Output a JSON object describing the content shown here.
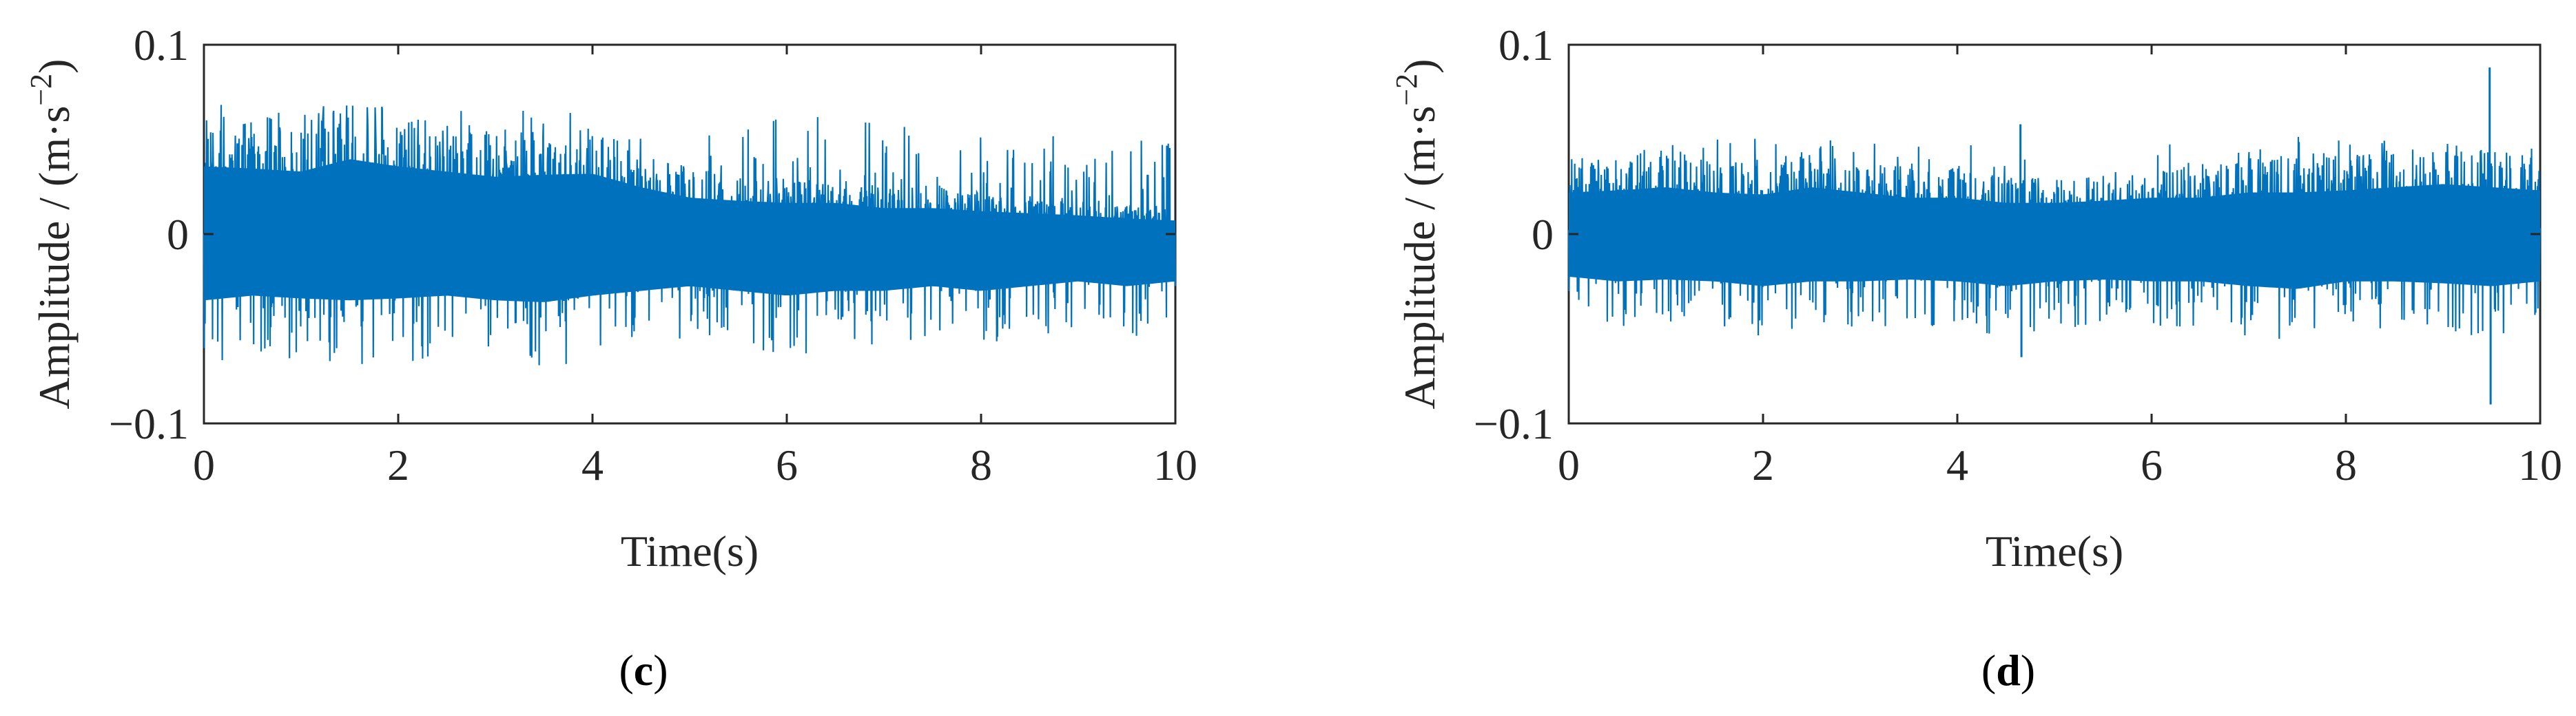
{
  "chart_data": [
    {
      "type": "line",
      "panel_label": "c",
      "xlabel": "Time(s)",
      "ylabel": "Amplitude / (m·s",
      "ylabel_exponent": "−2",
      "ylabel_close": ")",
      "xlim": [
        0,
        10
      ],
      "ylim": [
        -0.1,
        0.1
      ],
      "xticks": [
        "0",
        "2",
        "4",
        "6",
        "8",
        "10"
      ],
      "yticks": [
        "−0.1",
        "0",
        "0.1"
      ],
      "grid": false,
      "color": "#0072BD",
      "envelope": {
        "t": [
          0,
          0.5,
          1,
          1.5,
          2,
          2.5,
          3,
          3.5,
          4,
          4.5,
          5,
          5.5,
          6,
          6.5,
          7,
          7.5,
          8,
          8.5,
          9,
          9.5,
          10
        ],
        "upper": [
          0.065,
          0.063,
          0.06,
          0.072,
          0.065,
          0.06,
          0.055,
          0.057,
          0.058,
          0.045,
          0.035,
          0.032,
          0.03,
          0.03,
          0.025,
          0.025,
          0.022,
          0.02,
          0.018,
          0.015,
          0.013
        ],
        "lower": [
          -0.07,
          -0.065,
          -0.068,
          -0.07,
          -0.068,
          -0.065,
          -0.07,
          -0.072,
          -0.065,
          -0.06,
          -0.055,
          -0.06,
          -0.065,
          -0.06,
          -0.06,
          -0.055,
          -0.06,
          -0.055,
          -0.05,
          -0.055,
          -0.05
        ]
      }
    },
    {
      "type": "line",
      "panel_label": "d",
      "xlabel": "Time(s)",
      "ylabel": "Amplitude / (m·s",
      "ylabel_exponent": "−2",
      "ylabel_close": ")",
      "xlim": [
        0,
        10
      ],
      "ylim": [
        -0.1,
        0.1
      ],
      "xticks": [
        "0",
        "2",
        "4",
        "6",
        "8",
        "10"
      ],
      "yticks": [
        "−0.1",
        "0",
        "0.1"
      ],
      "grid": false,
      "color": "#0072BD",
      "envelope": {
        "t": [
          0,
          0.5,
          1,
          1.5,
          2,
          2.5,
          3,
          3.5,
          4,
          4.5,
          5,
          5.5,
          6,
          6.5,
          7,
          7.5,
          8,
          8.5,
          9,
          9.5,
          10
        ],
        "upper": [
          0.04,
          0.042,
          0.045,
          0.04,
          0.038,
          0.045,
          0.04,
          0.035,
          0.035,
          0.03,
          0.03,
          0.032,
          0.035,
          0.035,
          0.04,
          0.04,
          0.042,
          0.045,
          0.048,
          0.045,
          0.042
        ],
        "lower": [
          -0.045,
          -0.05,
          -0.048,
          -0.05,
          -0.055,
          -0.05,
          -0.05,
          -0.048,
          -0.05,
          -0.055,
          -0.05,
          -0.048,
          -0.05,
          -0.05,
          -0.055,
          -0.058,
          -0.05,
          -0.05,
          -0.052,
          -0.055,
          -0.05
        ]
      },
      "spikes": [
        {
          "t": 4.65,
          "value": 0.058
        },
        {
          "t": 4.66,
          "value": -0.065
        },
        {
          "t": 9.48,
          "value": 0.088
        },
        {
          "t": 9.49,
          "value": -0.09
        }
      ]
    }
  ]
}
